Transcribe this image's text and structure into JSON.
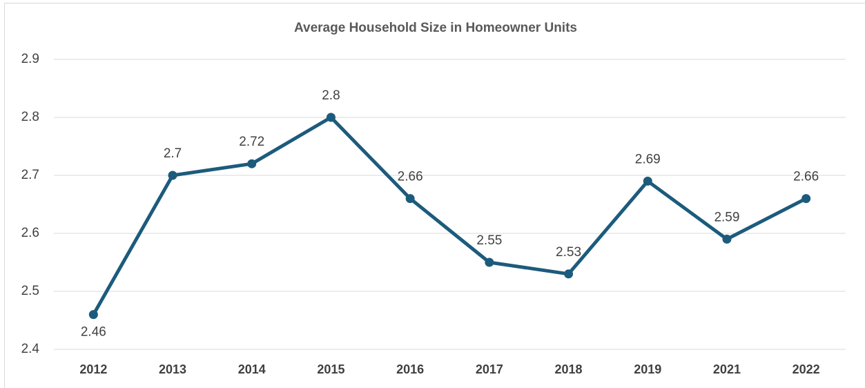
{
  "chart_data": {
    "type": "line",
    "title": "Average Household Size in Homeowner Units",
    "categories": [
      "2012",
      "2013",
      "2014",
      "2015",
      "2016",
      "2017",
      "2018",
      "2019",
      "2021",
      "2022"
    ],
    "values": [
      2.46,
      2.7,
      2.72,
      2.8,
      2.66,
      2.55,
      2.53,
      2.69,
      2.59,
      2.66
    ],
    "color": "#1c5b7c",
    "ylim": [
      2.4,
      2.9
    ],
    "yticks": [
      2.4,
      2.5,
      2.6,
      2.7,
      2.8,
      2.9
    ],
    "grid": true
  }
}
